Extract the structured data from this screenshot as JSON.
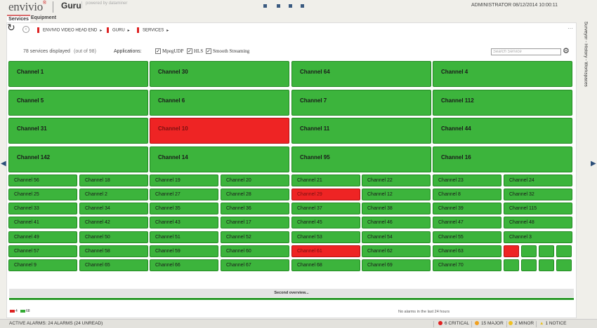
{
  "header": {
    "logo": "envivio",
    "logo_mark": "®",
    "app_name": "Guru",
    "powered_by": "powered by dataminer",
    "user": "ADMINISTRATOR",
    "datetime": "08/12/2014 10:00:11"
  },
  "tabs": [
    {
      "label": "Services",
      "active": true
    },
    {
      "label": "Equipment",
      "active": false
    }
  ],
  "breadcrumb": [
    "ENVIVIO VIDEO HEAD END",
    "GURU",
    "SERVICES"
  ],
  "toolbar": {
    "count_text": "78 services displayed",
    "out_of_text": "(out of 98)",
    "applications_label": "Applications:",
    "applications": [
      {
        "label": "MpegUDP",
        "checked": true
      },
      {
        "label": "HLS",
        "checked": true
      },
      {
        "label": "Smooth Streaming",
        "checked": true
      }
    ],
    "search_placeholder": "Search Service"
  },
  "colors": {
    "ok": "#3cb43c",
    "alarm": "#ee2424",
    "accent": "#d22222"
  },
  "big_tiles": [
    {
      "label": "Channel 1",
      "status": "ok"
    },
    {
      "label": "Channel 30",
      "status": "ok"
    },
    {
      "label": "Channel 64",
      "status": "ok"
    },
    {
      "label": "Channel 4",
      "status": "ok"
    },
    {
      "label": "Channel 5",
      "status": "ok"
    },
    {
      "label": "Channel 6",
      "status": "ok"
    },
    {
      "label": "Channel 7",
      "status": "ok"
    },
    {
      "label": "Channel 112",
      "status": "ok"
    },
    {
      "label": "Channel 31",
      "status": "ok"
    },
    {
      "label": "Channel 10",
      "status": "alarm"
    },
    {
      "label": "Channel 11",
      "status": "ok"
    },
    {
      "label": "Channel 44",
      "status": "ok"
    },
    {
      "label": "Channel 142",
      "status": "ok"
    },
    {
      "label": "Channel 14",
      "status": "ok"
    },
    {
      "label": "Channel 95",
      "status": "ok"
    },
    {
      "label": "Channel 16",
      "status": "ok"
    }
  ],
  "small_rows": [
    [
      {
        "label": "Channel 56",
        "status": "ok"
      },
      {
        "label": "Channel 18",
        "status": "ok"
      },
      {
        "label": "Channel 19",
        "status": "ok"
      },
      {
        "label": "Channel 20",
        "status": "ok"
      },
      {
        "label": "Channel 21",
        "status": "ok"
      },
      {
        "label": "Channel 22",
        "status": "ok"
      },
      {
        "label": "Channel 23",
        "status": "ok"
      },
      {
        "label": "Channel 24",
        "status": "ok"
      }
    ],
    [
      {
        "label": "Channel 25",
        "status": "ok"
      },
      {
        "label": "Channel 2",
        "status": "ok"
      },
      {
        "label": "Channel 27",
        "status": "ok"
      },
      {
        "label": "Channel 28",
        "status": "ok"
      },
      {
        "label": "Channel 29",
        "status": "alarm"
      },
      {
        "label": "Channel 12",
        "status": "ok"
      },
      {
        "label": "Channel 8",
        "status": "ok"
      },
      {
        "label": "Channel 32",
        "status": "ok"
      }
    ],
    [
      {
        "label": "Channel 33",
        "status": "ok"
      },
      {
        "label": "Channel 34",
        "status": "ok"
      },
      {
        "label": "Channel 35",
        "status": "ok"
      },
      {
        "label": "Channel 36",
        "status": "ok"
      },
      {
        "label": "Channel 37",
        "status": "ok"
      },
      {
        "label": "Channel 38",
        "status": "ok"
      },
      {
        "label": "Channel 39",
        "status": "ok"
      },
      {
        "label": "Channel 115",
        "status": "ok"
      }
    ],
    [
      {
        "label": "Channel 41",
        "status": "ok"
      },
      {
        "label": "Channel 42",
        "status": "ok"
      },
      {
        "label": "Channel 43",
        "status": "ok"
      },
      {
        "label": "Channel 17",
        "status": "ok"
      },
      {
        "label": "Channel 45",
        "status": "ok"
      },
      {
        "label": "Channel 46",
        "status": "ok"
      },
      {
        "label": "Channel 47",
        "status": "ok"
      },
      {
        "label": "Channel 48",
        "status": "ok"
      }
    ],
    [
      {
        "label": "Channel 49",
        "status": "ok"
      },
      {
        "label": "Channel 50",
        "status": "ok"
      },
      {
        "label": "Channel 51",
        "status": "ok"
      },
      {
        "label": "Channel 52",
        "status": "ok"
      },
      {
        "label": "Channel 53",
        "status": "ok"
      },
      {
        "label": "Channel 54",
        "status": "ok"
      },
      {
        "label": "Channel 55",
        "status": "ok"
      },
      {
        "label": "Channel 3",
        "status": "ok"
      }
    ],
    [
      {
        "label": "Channel 57",
        "status": "ok"
      },
      {
        "label": "Channel 58",
        "status": "ok"
      },
      {
        "label": "Channel 59",
        "status": "ok"
      },
      {
        "label": "Channel 60",
        "status": "ok"
      },
      {
        "label": "Channel 61",
        "status": "alarm"
      },
      {
        "label": "Channel 62",
        "status": "ok"
      },
      {
        "label": "Channel 63",
        "status": "ok"
      }
    ],
    [
      {
        "label": "Channel 9",
        "status": "ok"
      },
      {
        "label": "Channel 65",
        "status": "ok"
      },
      {
        "label": "Channel 66",
        "status": "ok"
      },
      {
        "label": "Channel 67",
        "status": "ok"
      },
      {
        "label": "Channel 68",
        "status": "ok"
      },
      {
        "label": "Channel 69",
        "status": "ok"
      },
      {
        "label": "Channel 70",
        "status": "ok"
      }
    ]
  ],
  "mini_tiles": [
    [
      "alarm",
      "ok",
      "ok",
      "ok"
    ],
    [
      "ok",
      "ok",
      "ok",
      "ok"
    ]
  ],
  "bottom": {
    "second_overview": "Second overview...",
    "alarm_count_red": "4",
    "alarm_count_green": "68",
    "no_alarms": "No alarms in the last 24 hours"
  },
  "side_panel": "Surveyor - History - Workspaces",
  "statusbar": {
    "active_alarms": "ACTIVE ALARMS: 24 ALARMS (24 UNREAD)",
    "severities": [
      {
        "label": "6 CRITICAL",
        "color": "#e02020",
        "shape": "circle"
      },
      {
        "label": "15 MAJOR",
        "color": "#f0a020",
        "shape": "circle"
      },
      {
        "label": "2 MINOR",
        "color": "#f0c020",
        "shape": "circle"
      },
      {
        "label": "1 NOTICE",
        "color": "#e8c020",
        "shape": "triangle"
      }
    ]
  }
}
